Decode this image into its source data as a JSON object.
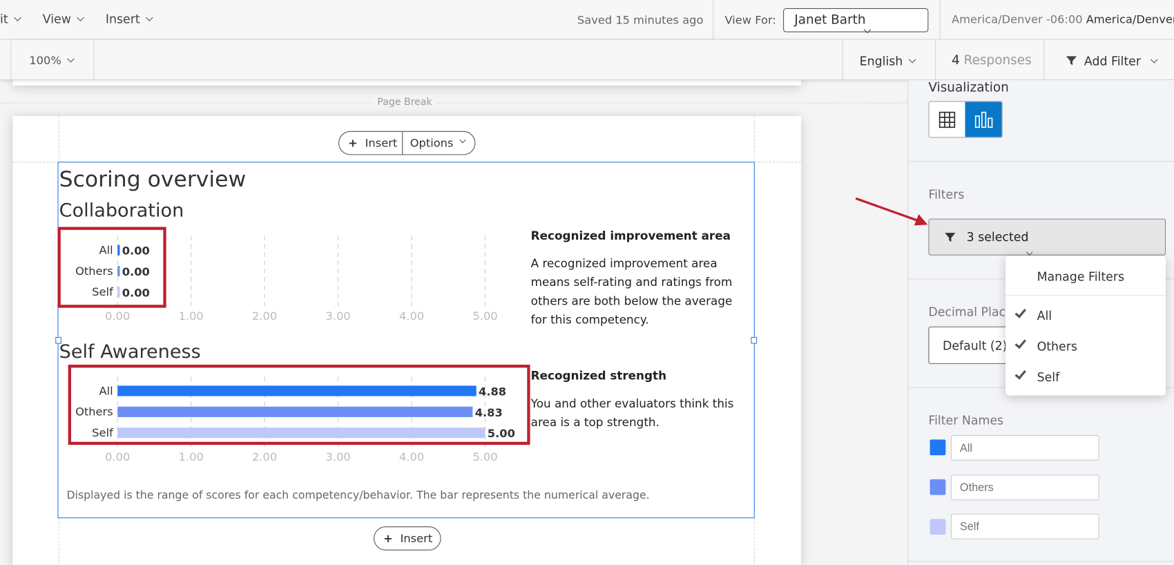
{
  "topbar": {
    "menus": [
      "it",
      "View",
      "Insert"
    ],
    "saved_status": "Saved 15 minutes ago",
    "view_for_label": "View For:",
    "view_for_value": "Janet Barth",
    "timezone_offset": "America/Denver -06:00",
    "timezone_name": "America/Denver"
  },
  "toolbar": {
    "zoom": "100%",
    "language": "English",
    "responses_count": "4",
    "responses_label": "Responses",
    "add_filter": "Add Filter"
  },
  "page": {
    "page_break": "Page Break",
    "insert": "Insert",
    "options": "Options",
    "title": "Scoring overview",
    "footer_note": "Displayed is the range of scores for each competency/behavior. The bar represents the numerical average.",
    "insert_bottom": "Insert"
  },
  "sections": [
    {
      "heading": "Collaboration",
      "note_title": "Recognized improvement area",
      "note_text": "A recognized improvement area means self-rating and ratings from others are both below the average for this competency."
    },
    {
      "heading": "Self Awareness",
      "note_title": "Recognized strength",
      "note_text": "You and other evaluators think this area is a top strength."
    }
  ],
  "chart_data": [
    {
      "type": "bar",
      "orientation": "horizontal",
      "title": "Collaboration",
      "categories": [
        "All",
        "Others",
        "Self"
      ],
      "values": [
        0.0,
        0.0,
        0.0
      ],
      "data_labels": [
        "0.00",
        "0.00",
        "0.00"
      ],
      "xlim": [
        0,
        5
      ],
      "x_ticks": [
        "0.00",
        "1.00",
        "2.00",
        "3.00",
        "4.00",
        "5.00"
      ],
      "grid": true,
      "colors": [
        "#2277f5",
        "#6b8ff7",
        "#bfc8fb"
      ]
    },
    {
      "type": "bar",
      "orientation": "horizontal",
      "title": "Self Awareness",
      "categories": [
        "All",
        "Others",
        "Self"
      ],
      "values": [
        4.88,
        4.83,
        5.0
      ],
      "data_labels": [
        "4.88",
        "4.83",
        "5.00"
      ],
      "xlim": [
        0,
        5
      ],
      "x_ticks": [
        "0.00",
        "1.00",
        "2.00",
        "3.00",
        "4.00",
        "5.00"
      ],
      "grid": true,
      "colors": [
        "#2277f5",
        "#6b8ff7",
        "#bfc8fb"
      ]
    }
  ],
  "sidebar": {
    "visualization_label": "Visualization",
    "visualization_options": [
      "table-icon",
      "bar-chart-icon"
    ],
    "visualization_selected": "bar-chart-icon",
    "filters_label": "Filters",
    "filters_value": "3 selected",
    "decimal_label": "Decimal Places",
    "decimal_value": "Default (2)",
    "filter_names_label": "Filter Names",
    "filter_names": [
      {
        "placeholder": "All",
        "color": "#2277f5"
      },
      {
        "placeholder": "Others",
        "color": "#6b8ff7"
      },
      {
        "placeholder": "Self",
        "color": "#bfc8fb"
      }
    ]
  },
  "filter_menu": {
    "manage": "Manage Filters",
    "items": [
      {
        "label": "All",
        "checked": true
      },
      {
        "label": "Others",
        "checked": true
      },
      {
        "label": "Self",
        "checked": true
      }
    ]
  },
  "accent_color": "#0a78c8",
  "highlight_color": "#c0202f"
}
